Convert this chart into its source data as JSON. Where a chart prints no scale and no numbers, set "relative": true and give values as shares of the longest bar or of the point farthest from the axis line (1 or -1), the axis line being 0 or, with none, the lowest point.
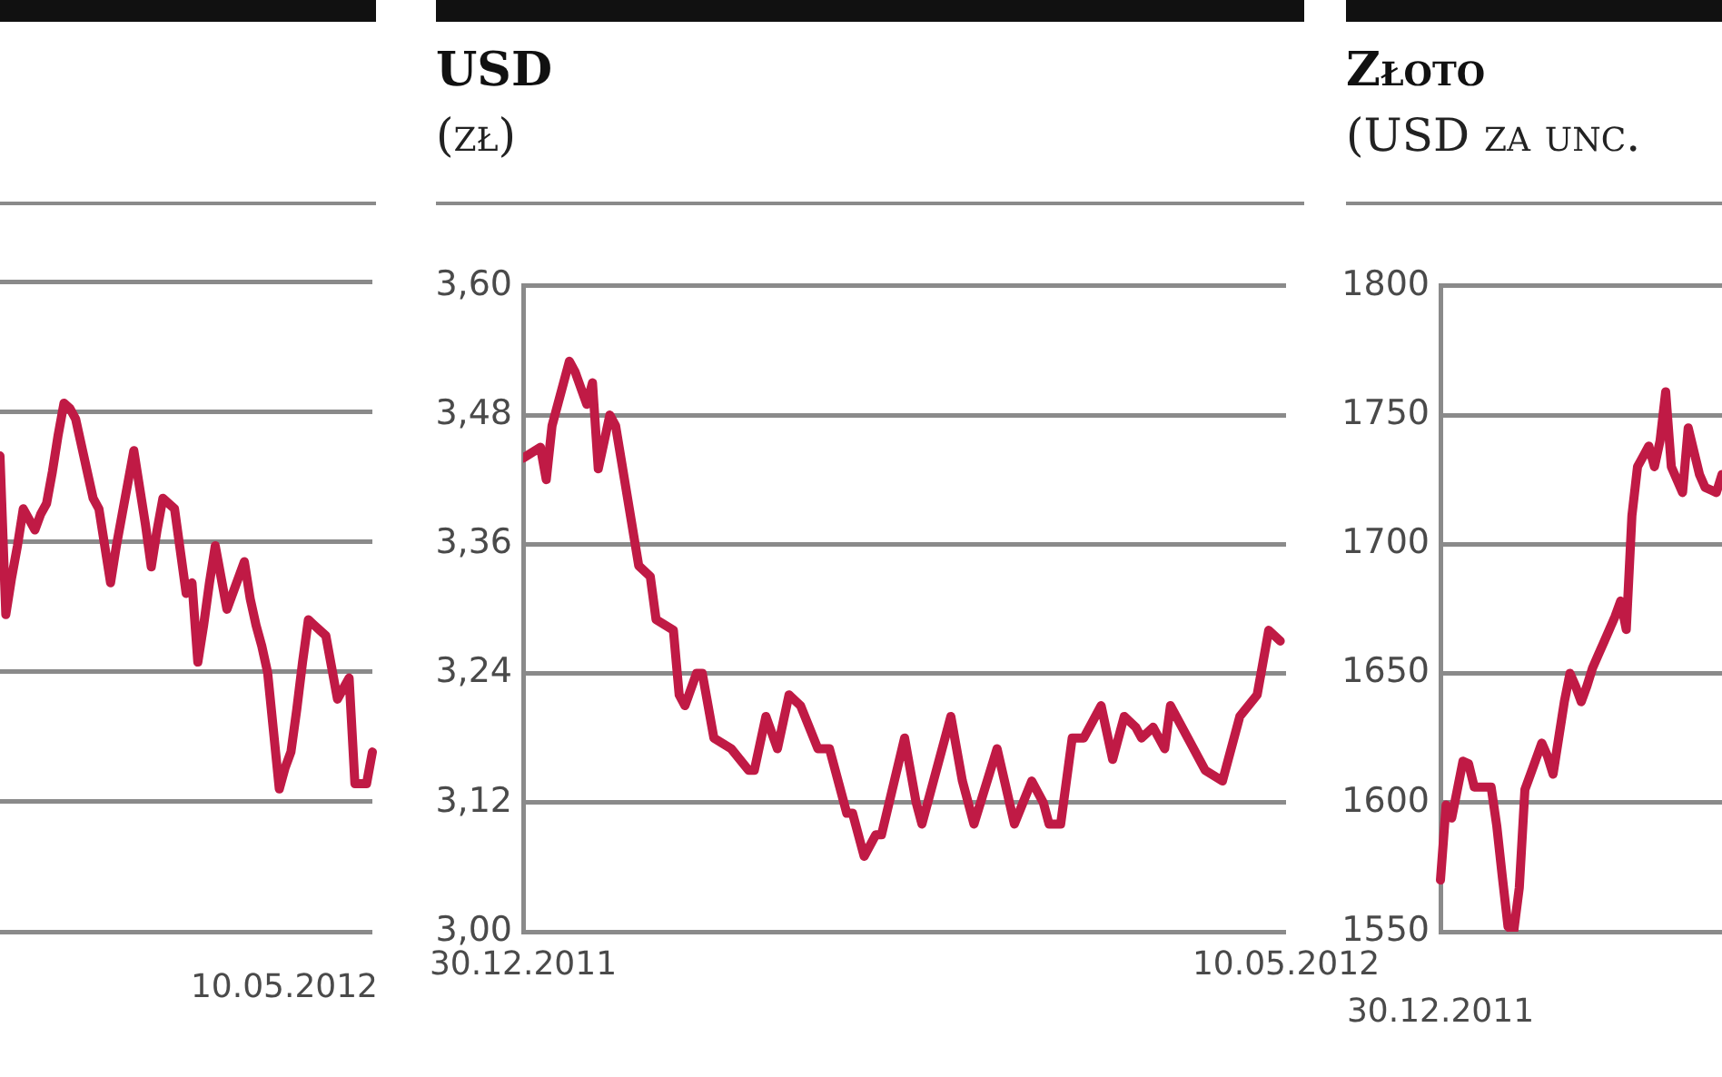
{
  "chart_data": [
    {
      "type": "line",
      "relative": true,
      "grid": "y",
      "color": "#c01a45",
      "categories": [
        null,
        null,
        null,
        null,
        null,
        null,
        null,
        null,
        null,
        null,
        null,
        null,
        null,
        null,
        null,
        null,
        null,
        null,
        null,
        null,
        null,
        null,
        null,
        null,
        null,
        null,
        null,
        null,
        null,
        null,
        null,
        null,
        null,
        null,
        null,
        null,
        null,
        null,
        null,
        null,
        null,
        null,
        null,
        null,
        null,
        null,
        null,
        null,
        null,
        null,
        null,
        null,
        null,
        null,
        null,
        null,
        null,
        null,
        null,
        null,
        null,
        null,
        null,
        null,
        null
      ],
      "annotations": [
        "10.05.2012"
      ],
      "values": [
        0.9,
        0.6,
        0.67,
        0.73,
        0.8,
        0.78,
        0.76,
        0.79,
        0.81,
        0.87,
        0.94,
        1.0,
        0.99,
        0.97,
        0.92,
        0.87,
        0.82,
        0.8,
        0.73,
        0.66,
        0.73,
        0.79,
        0.85,
        0.91,
        0.84,
        0.77,
        0.69,
        0.76,
        0.82,
        0.81,
        0.8,
        0.72,
        0.64,
        0.66,
        0.51,
        0.58,
        0.66,
        0.73,
        0.67,
        0.61,
        0.64,
        0.67,
        0.7,
        0.63,
        0.58,
        0.54,
        0.49,
        0.38,
        0.27,
        0.31,
        0.34,
        0.42,
        0.51,
        0.59,
        0.58,
        0.57,
        0.56,
        0.5,
        0.44,
        0.46,
        0.48,
        0.28,
        0.28,
        0.28,
        0.34
      ]
    },
    {
      "type": "line",
      "title": "USD",
      "subtitle": "(zł)",
      "grid": "y",
      "color": "#c01a45",
      "xlim": [
        "2011-12-30",
        "2012-05-10"
      ],
      "xticks": [
        {
          "value": "2011-12-30",
          "label": "30.12.2011"
        },
        {
          "value": "2012-05-10",
          "label": "10.05.2012"
        }
      ],
      "ylim": [
        3.0,
        3.6
      ],
      "yticks": [
        {
          "value": 3.0,
          "label": "3,00"
        },
        {
          "value": 3.12,
          "label": "3,12"
        },
        {
          "value": 3.24,
          "label": "3,24"
        },
        {
          "value": 3.36,
          "label": "3,36"
        },
        {
          "value": 3.48,
          "label": "3,48"
        },
        {
          "value": 3.6,
          "label": "3,60"
        }
      ],
      "x": [
        "2011-12-30",
        "2012-01-02",
        "2012-01-03",
        "2012-01-04",
        "2012-01-07",
        "2012-01-08",
        "2012-01-10",
        "2012-01-11",
        "2012-01-12",
        "2012-01-14",
        "2012-01-15",
        "2012-01-19",
        "2012-01-21",
        "2012-01-22",
        "2012-01-25",
        "2012-01-26",
        "2012-01-27",
        "2012-01-29",
        "2012-01-30",
        "2012-02-01",
        "2012-02-04",
        "2012-02-07",
        "2012-02-08",
        "2012-02-10",
        "2012-02-12",
        "2012-02-14",
        "2012-02-16",
        "2012-02-19",
        "2012-02-21",
        "2012-02-24",
        "2012-02-25",
        "2012-02-27",
        "2012-02-29",
        "2012-03-01",
        "2012-03-05",
        "2012-03-07",
        "2012-03-08",
        "2012-03-10",
        "2012-03-13",
        "2012-03-15",
        "2012-03-17",
        "2012-03-21",
        "2012-03-24",
        "2012-03-27",
        "2012-03-29",
        "2012-03-30",
        "2012-04-01",
        "2012-04-03",
        "2012-04-05",
        "2012-04-08",
        "2012-04-10",
        "2012-04-12",
        "2012-04-14",
        "2012-04-15",
        "2012-04-17",
        "2012-04-19",
        "2012-04-20",
        "2012-04-23",
        "2012-04-26",
        "2012-04-29",
        "2012-05-02",
        "2012-05-05",
        "2012-05-07",
        "2012-05-09"
      ],
      "values": [
        3.44,
        3.45,
        3.42,
        3.47,
        3.53,
        3.52,
        3.49,
        3.51,
        3.43,
        3.48,
        3.47,
        3.34,
        3.33,
        3.29,
        3.28,
        3.22,
        3.21,
        3.24,
        3.24,
        3.18,
        3.17,
        3.15,
        3.15,
        3.2,
        3.17,
        3.22,
        3.21,
        3.17,
        3.17,
        3.11,
        3.11,
        3.07,
        3.09,
        3.09,
        3.18,
        3.12,
        3.1,
        3.14,
        3.2,
        3.14,
        3.1,
        3.17,
        3.1,
        3.14,
        3.12,
        3.1,
        3.1,
        3.18,
        3.18,
        3.21,
        3.16,
        3.2,
        3.19,
        3.18,
        3.19,
        3.17,
        3.21,
        3.18,
        3.15,
        3.14,
        3.2,
        3.22,
        3.28,
        3.27
      ]
    },
    {
      "type": "line",
      "title": "Złoto",
      "subtitle": "(USD za unc.",
      "grid": "y",
      "color": "#c01a45",
      "ylim": [
        1550,
        1800
      ],
      "yticks": [
        1550,
        1600,
        1650,
        1700,
        1750,
        1800
      ],
      "categories": [
        "30.12.2011",
        null,
        null,
        null,
        null,
        null,
        null,
        null,
        null,
        null,
        null,
        null,
        null,
        null,
        null,
        null,
        null,
        null,
        null,
        null,
        null,
        null,
        null,
        null,
        null,
        null,
        null,
        null,
        null,
        null,
        null,
        null,
        null,
        null,
        null,
        null,
        null,
        null,
        null,
        null,
        null,
        null,
        null,
        null,
        null,
        null,
        null,
        null,
        null,
        null,
        null
      ],
      "values": [
        1570,
        1599,
        1594,
        1605,
        1616,
        1615,
        1606,
        1606,
        1606,
        1606,
        1591,
        1571,
        1552,
        1550,
        1567,
        1605,
        1611,
        1617,
        1623,
        1618,
        1611,
        1625,
        1639,
        1650,
        1645,
        1639,
        1645,
        1652,
        1657,
        1662,
        1667,
        1672,
        1678,
        1667,
        1711,
        1730,
        1734,
        1738,
        1730,
        1740,
        1759,
        1730,
        1725,
        1720,
        1745,
        1736,
        1727,
        1722,
        1721,
        1720,
        1727
      ]
    }
  ]
}
